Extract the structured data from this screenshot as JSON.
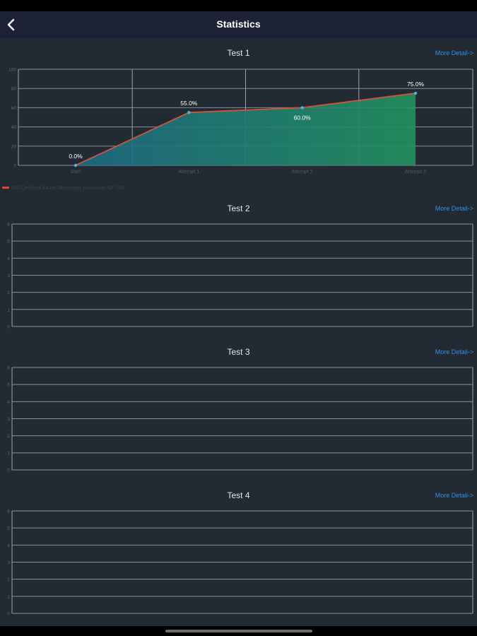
{
  "header": {
    "title": "Statistics",
    "back_icon": "chevron-left-icon"
  },
  "more_detail_label": "More Detail->",
  "sections": [
    {
      "title": "Test 1"
    },
    {
      "title": "Test 2"
    },
    {
      "title": "Test 3"
    },
    {
      "title": "Test 4"
    }
  ],
  "colors": {
    "line": "#c8553e",
    "fill_start": "#1e6b86",
    "fill_end": "#22925f",
    "grid": "#9aa2ab",
    "link": "#2f8fe6",
    "point": "#4fb3e8"
  },
  "chart_data": [
    {
      "type": "area",
      "categories": [
        "Start",
        "Attempt 1",
        "Attempt 2",
        "Attempt 3"
      ],
      "series": [
        {
          "name": "MS-Certified Azure Developer Associate AZ-204",
          "values": [
            0,
            55,
            60,
            75
          ]
        }
      ],
      "data_labels": [
        "0.0%",
        "55.0%",
        "60.0%",
        "75.0%"
      ],
      "ylim": [
        0,
        100
      ],
      "yticks": [
        "0",
        "20",
        "40",
        "60",
        "80",
        "100"
      ],
      "grid": true,
      "legend": "bottom-left"
    },
    {
      "type": "line",
      "categories": [],
      "series": [],
      "ylim": [
        0,
        6
      ],
      "yticks": [
        "0",
        "1",
        "2",
        "3",
        "4",
        "5",
        "6"
      ],
      "grid": true
    },
    {
      "type": "line",
      "categories": [],
      "series": [],
      "ylim": [
        0,
        6
      ],
      "yticks": [
        "0",
        "1",
        "2",
        "3",
        "4",
        "5",
        "6"
      ],
      "grid": true
    },
    {
      "type": "line",
      "categories": [],
      "series": [],
      "ylim": [
        0,
        6
      ],
      "yticks": [
        "0",
        "1",
        "2",
        "3",
        "4",
        "5",
        "6"
      ],
      "grid": true
    }
  ]
}
